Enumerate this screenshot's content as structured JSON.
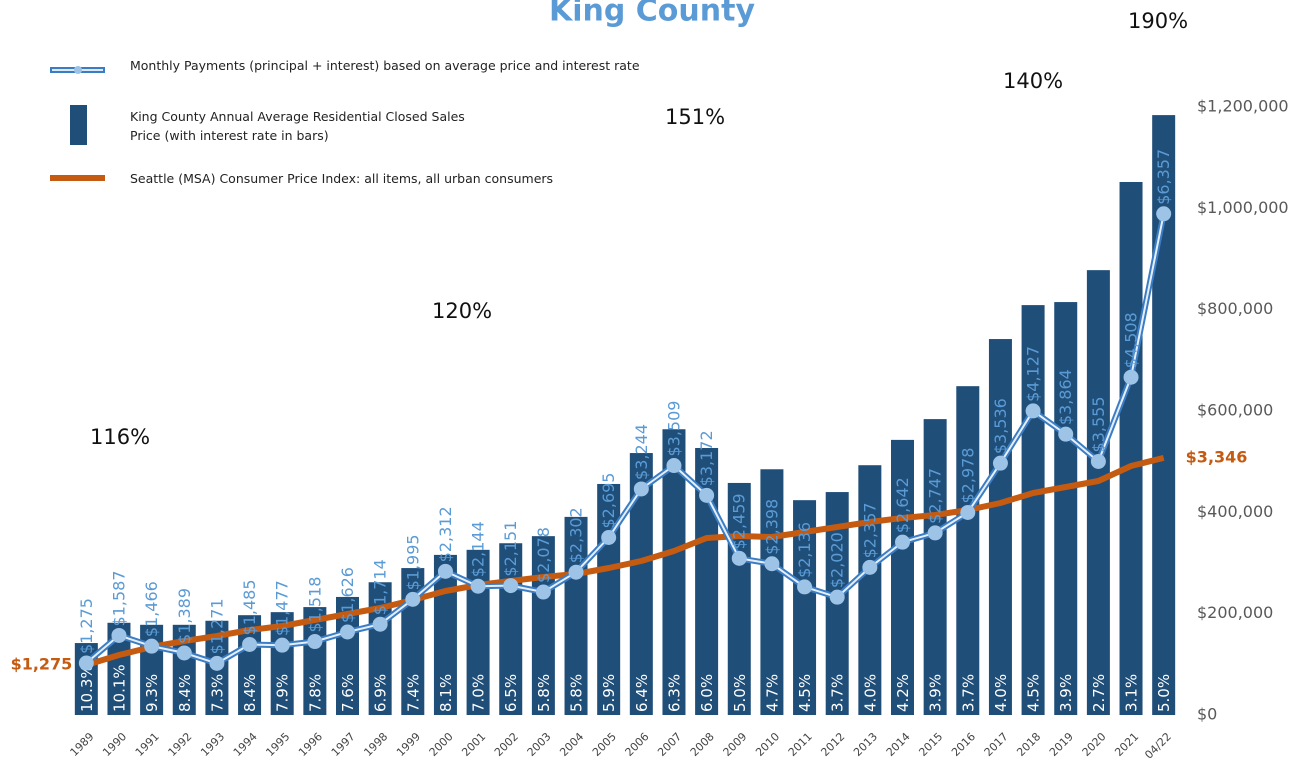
{
  "chart_data": {
    "type": "bar_line",
    "title": "King County",
    "categories": [
      "1989",
      "1990",
      "1991",
      "1992",
      "1993",
      "1994",
      "1995",
      "1996",
      "1997",
      "1998",
      "1999",
      "2000",
      "2001",
      "2002",
      "2003",
      "2004",
      "2005",
      "2006",
      "2007",
      "2008",
      "2009",
      "2010",
      "2011",
      "2012",
      "2013",
      "2014",
      "2015",
      "2016",
      "2017",
      "2018",
      "2019",
      "2020",
      "2021",
      "04/22"
    ],
    "series": [
      {
        "name": "King County Annual Average Residential Closed Sales Price (with interest rate in bars)",
        "type": "bar",
        "color": "#1f4e79",
        "values": [
          142000,
          182000,
          178000,
          178000,
          186000,
          197000,
          203000,
          213000,
          233000,
          262000,
          290000,
          316000,
          326000,
          339000,
          353000,
          391000,
          456000,
          517000,
          564000,
          527000,
          458000,
          485000,
          424000,
          440000,
          493000,
          543000,
          584000,
          649000,
          742000,
          809000,
          815000,
          878000,
          1052000,
          1184000
        ],
        "value_labels": [
          "10.3%",
          "10.1%",
          "9.3%",
          "8.4%",
          "7.3%",
          "8.4%",
          "7.9%",
          "7.8%",
          "7.6%",
          "6.9%",
          "7.4%",
          "8.1%",
          "7.0%",
          "6.5%",
          "5.8%",
          "5.8%",
          "5.9%",
          "6.4%",
          "6.3%",
          "6.0%",
          "5.0%",
          "4.7%",
          "4.5%",
          "3.7%",
          "4.0%",
          "4.2%",
          "3.9%",
          "3.7%",
          "4.0%",
          "4.5%",
          "3.9%",
          "2.7%",
          "3.1%",
          "5.0%"
        ]
      },
      {
        "name": "Monthly Payments (principal + interest) based on average price and interest rate",
        "type": "line",
        "axis": "y2",
        "color": "#3b7dc4",
        "marker_color": "#9dc3e6",
        "values": [
          1275,
          1587,
          1466,
          1389,
          1271,
          1485,
          1477,
          1518,
          1626,
          1714,
          1995,
          2312,
          2144,
          2151,
          2078,
          2302,
          2695,
          3244,
          3509,
          3172,
          2459,
          2398,
          2136,
          2020,
          2357,
          2642,
          2747,
          2978,
          3536,
          4127,
          3864,
          3555,
          4508,
          6357
        ],
        "value_labels": [
          "$1,275",
          "$1,587",
          "$1,466",
          "$1,389",
          "$1,271",
          "$1,485",
          "$1,477",
          "$1,518",
          "$1,626",
          "$1,714",
          "$1,995",
          "$2,312",
          "$2,144",
          "$2,151",
          "$2,078",
          "$2,302",
          "$2,695",
          "$3,244",
          "$3,509",
          "$3,172",
          "$2,459",
          "$2,398",
          "$2,136",
          "$2,020",
          "$2,357",
          "$2,642",
          "$2,747",
          "$2,978",
          "$3,536",
          "$4,127",
          "$3,864",
          "$3,555",
          "$4,508",
          "$6,357"
        ]
      },
      {
        "name": "Seattle (MSA) Consumer Price Index: all items, all urban consumers",
        "type": "line",
        "axis": "y3",
        "color": "#c55a11",
        "values": [
          1275,
          1375,
          1455,
          1515,
          1565,
          1625,
          1665,
          1725,
          1785,
          1845,
          1925,
          2015,
          2075,
          2115,
          2155,
          2185,
          2245,
          2315,
          2415,
          2545,
          2565,
          2555,
          2605,
          2655,
          2705,
          2745,
          2775,
          2825,
          2895,
          2995,
          3055,
          3115,
          3265,
          3346
        ],
        "value_labels": [
          "$1,275",
          null,
          null,
          null,
          null,
          null,
          null,
          null,
          null,
          null,
          null,
          null,
          null,
          null,
          null,
          null,
          null,
          null,
          null,
          null,
          null,
          null,
          null,
          null,
          null,
          null,
          null,
          null,
          null,
          null,
          null,
          null,
          null,
          "$3,346"
        ]
      }
    ],
    "ylim": [
      0,
      1200000
    ],
    "yticks": [
      {
        "value": 0,
        "label": "$0"
      },
      {
        "value": 200000,
        "label": "$200,000"
      },
      {
        "value": 400000,
        "label": "$400,000"
      },
      {
        "value": 600000,
        "label": "$600,000"
      },
      {
        "value": 800000,
        "label": "$800,000"
      },
      {
        "value": 1000000,
        "label": "$1,000,000"
      },
      {
        "value": 1200000,
        "label": "$1,200,000"
      }
    ],
    "y2lim": [
      687,
      7565
    ],
    "y3lim": [
      775,
      6855
    ],
    "annotations": [
      "116%",
      "120%",
      "151%",
      "140%",
      "190%"
    ]
  }
}
